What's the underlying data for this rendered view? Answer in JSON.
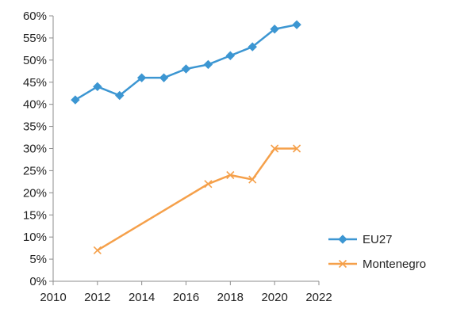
{
  "chart_data": {
    "type": "scatter",
    "subtype": "line-with-markers",
    "title": "",
    "xlabel": "",
    "ylabel": "",
    "xlim": [
      2010,
      2022
    ],
    "ylim": [
      0,
      0.6
    ],
    "xticks": [
      2010,
      2012,
      2014,
      2016,
      2018,
      2020,
      2022
    ],
    "xtick_labels": [
      "2010",
      "2012",
      "2014",
      "2016",
      "2018",
      "2020",
      "2022"
    ],
    "yticks": [
      0,
      0.05,
      0.1,
      0.15,
      0.2,
      0.25,
      0.3,
      0.35,
      0.4,
      0.45,
      0.5,
      0.55,
      0.6
    ],
    "ytick_labels": [
      "0%",
      "5%",
      "10%",
      "15%",
      "20%",
      "25%",
      "30%",
      "35%",
      "40%",
      "45%",
      "50%",
      "55%",
      "60%"
    ],
    "grid": false,
    "legend_position": "bottom-right",
    "series": [
      {
        "name": "EU27",
        "color": "#3c96d2",
        "marker": "diamond",
        "x": [
          2011,
          2012,
          2013,
          2014,
          2015,
          2016,
          2017,
          2018,
          2019,
          2020,
          2021
        ],
        "y": [
          0.41,
          0.44,
          0.42,
          0.46,
          0.46,
          0.48,
          0.49,
          0.51,
          0.53,
          0.57,
          0.58
        ]
      },
      {
        "name": "Montenegro",
        "color": "#f5a04a",
        "marker": "x",
        "x": [
          2012,
          2017,
          2018,
          2019,
          2020,
          2021
        ],
        "y": [
          0.07,
          0.22,
          0.24,
          0.23,
          0.3,
          0.3
        ]
      }
    ]
  }
}
